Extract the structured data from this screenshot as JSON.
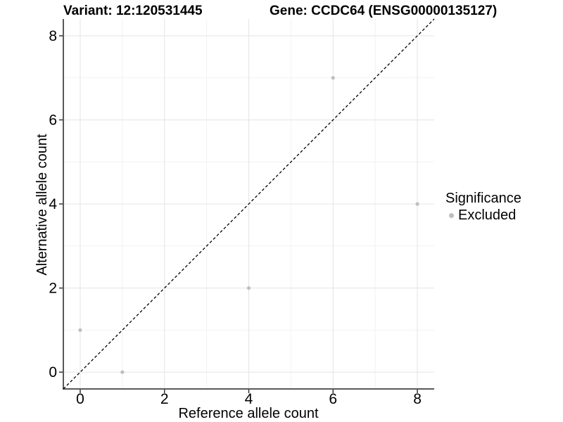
{
  "chart_data": {
    "type": "scatter",
    "title_left": "Variant: 12:120531445",
    "title_right": "Gene: CCDC64 (ENSG00000135127)",
    "xlabel": "Reference allele count",
    "ylabel": "Alternative allele count",
    "xlim": [
      -0.4,
      8.4
    ],
    "ylim": [
      -0.4,
      8.4
    ],
    "xticks": [
      0,
      2,
      4,
      6,
      8
    ],
    "yticks": [
      0,
      2,
      4,
      6,
      8
    ],
    "minor_breaks": [
      1,
      3,
      5,
      7
    ],
    "grid": "major+minor",
    "identity_line": {
      "type": "y=x",
      "style": "dashed",
      "color": "#000000"
    },
    "series": [
      {
        "name": "Excluded",
        "color": "#bebebe",
        "marker": "circle",
        "points": [
          [
            0,
            1
          ],
          [
            1,
            0
          ],
          [
            4,
            2
          ],
          [
            6,
            7
          ],
          [
            8,
            4
          ]
        ]
      }
    ],
    "legend": {
      "title": "Significance",
      "position": "right",
      "items": [
        {
          "label": "Excluded",
          "color": "#bebebe"
        }
      ]
    },
    "colors": {
      "background": "#ffffff",
      "axis_line": "#595959",
      "tick_mark": "#333333",
      "grid_major": "#e4e4e4",
      "grid_minor": "#f2f2f2",
      "text": "#000000"
    }
  }
}
